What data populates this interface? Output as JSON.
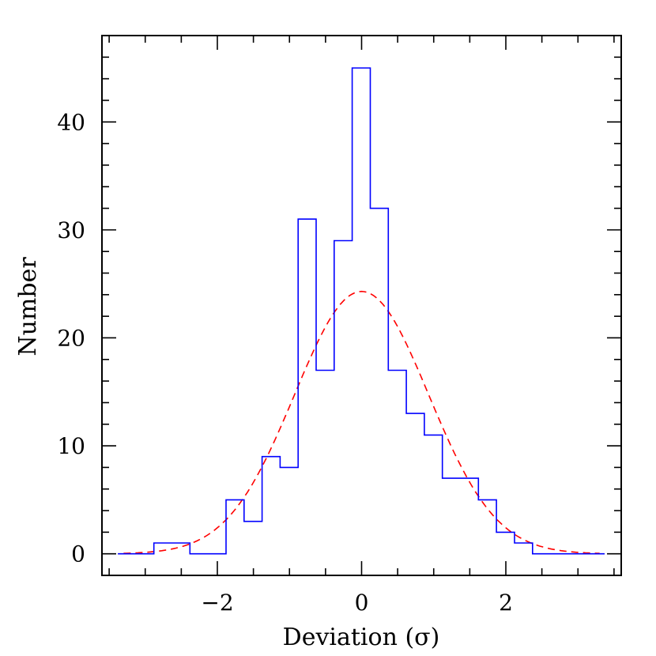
{
  "chart_data": {
    "type": "histogram",
    "xlabel": "Deviation (σ)",
    "ylabel": "Number",
    "xlim": [
      -3.6,
      3.6
    ],
    "ylim": [
      -2,
      48
    ],
    "x_ticks": [
      {
        "value": -2,
        "label": "−2"
      },
      {
        "value": 0,
        "label": "0"
      },
      {
        "value": 2,
        "label": "2"
      }
    ],
    "y_ticks": [
      {
        "value": 0,
        "label": "0"
      },
      {
        "value": 10,
        "label": "10"
      },
      {
        "value": 20,
        "label": "20"
      },
      {
        "value": 30,
        "label": "30"
      },
      {
        "value": 40,
        "label": "40"
      }
    ],
    "grid": false,
    "series": [
      {
        "kind": "histogram-step",
        "color": "#0000ff",
        "bin_edges": [
          -3.38,
          -2.88,
          -2.38,
          -1.88,
          -1.63,
          -1.38,
          -1.13,
          -0.88,
          -0.63,
          -0.38,
          -0.13,
          0.12,
          0.37,
          0.62,
          0.87,
          1.12,
          1.37,
          1.62,
          1.87,
          2.12,
          2.37,
          2.87,
          3.37
        ],
        "counts": [
          0,
          1,
          0,
          5,
          3,
          9,
          8,
          31,
          17,
          29,
          45,
          32,
          17,
          13,
          11,
          7,
          7,
          5,
          2,
          1,
          0,
          0
        ]
      },
      {
        "kind": "gaussian-fit",
        "color": "#ff0000",
        "style": "dashed",
        "mean": 0.0,
        "sigma": 0.93,
        "peak": 24.3,
        "x_range": [
          -3.3,
          3.3
        ]
      }
    ]
  }
}
